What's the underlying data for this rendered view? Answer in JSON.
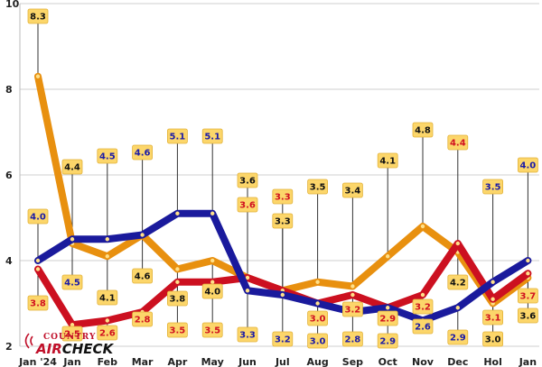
{
  "chart_data": {
    "type": "line",
    "categories": [
      "Jan '24",
      "Jan",
      "Feb",
      "Mar",
      "Apr",
      "May",
      "Jun",
      "Jul",
      "Aug",
      "Sep",
      "Oct",
      "Nov",
      "Dec",
      "Hol",
      "Jan"
    ],
    "ylim": [
      2,
      10
    ],
    "yticks": [
      2,
      4,
      6,
      8,
      10
    ],
    "grid": true,
    "legend": "none",
    "series": [
      {
        "color": "#e8900f",
        "label_text": "#111111",
        "values": [
          8.3,
          4.4,
          4.1,
          4.6,
          3.8,
          4.0,
          3.6,
          3.3,
          3.5,
          3.4,
          4.1,
          4.8,
          4.2,
          3.0,
          3.6
        ],
        "labels": [
          "8.3",
          "4.4",
          "4.1",
          "4.6",
          "3.8",
          "4.0",
          "3.6",
          "3.3",
          "3.5",
          "3.4",
          "4.1",
          "4.8",
          "4.2",
          "3.0",
          "3.6"
        ]
      },
      {
        "color": "#1a1a9c",
        "label_text": "#1a1aa8",
        "values": [
          4.0,
          4.5,
          4.5,
          4.6,
          5.1,
          5.1,
          3.3,
          3.2,
          3.0,
          2.8,
          2.9,
          2.6,
          2.9,
          3.5,
          4.0
        ],
        "labels": [
          "4.0",
          "4.5",
          "4.5",
          "4.6",
          "5.1",
          "5.1",
          "3.3",
          "3.2",
          "3.0",
          "2.8",
          "2.9",
          "2.6",
          "2.9",
          "3.5",
          "4.0"
        ]
      },
      {
        "color": "#cc1020",
        "label_text": "#d01020",
        "values": [
          3.8,
          2.5,
          2.6,
          2.8,
          3.5,
          3.5,
          3.6,
          3.3,
          3.0,
          3.2,
          2.9,
          3.2,
          4.4,
          3.1,
          3.7
        ],
        "labels": [
          "3.8",
          "2.5",
          "2.6",
          "2.8",
          "3.5",
          "3.5",
          "3.6",
          "3.3",
          "3.0",
          "3.2",
          "2.9",
          "3.2",
          "4.4",
          "3.1",
          "3.7"
        ]
      }
    ]
  },
  "logo": {
    "line1": "COUNTRY",
    "line2a": "AIR",
    "line2b": "CHECK"
  }
}
